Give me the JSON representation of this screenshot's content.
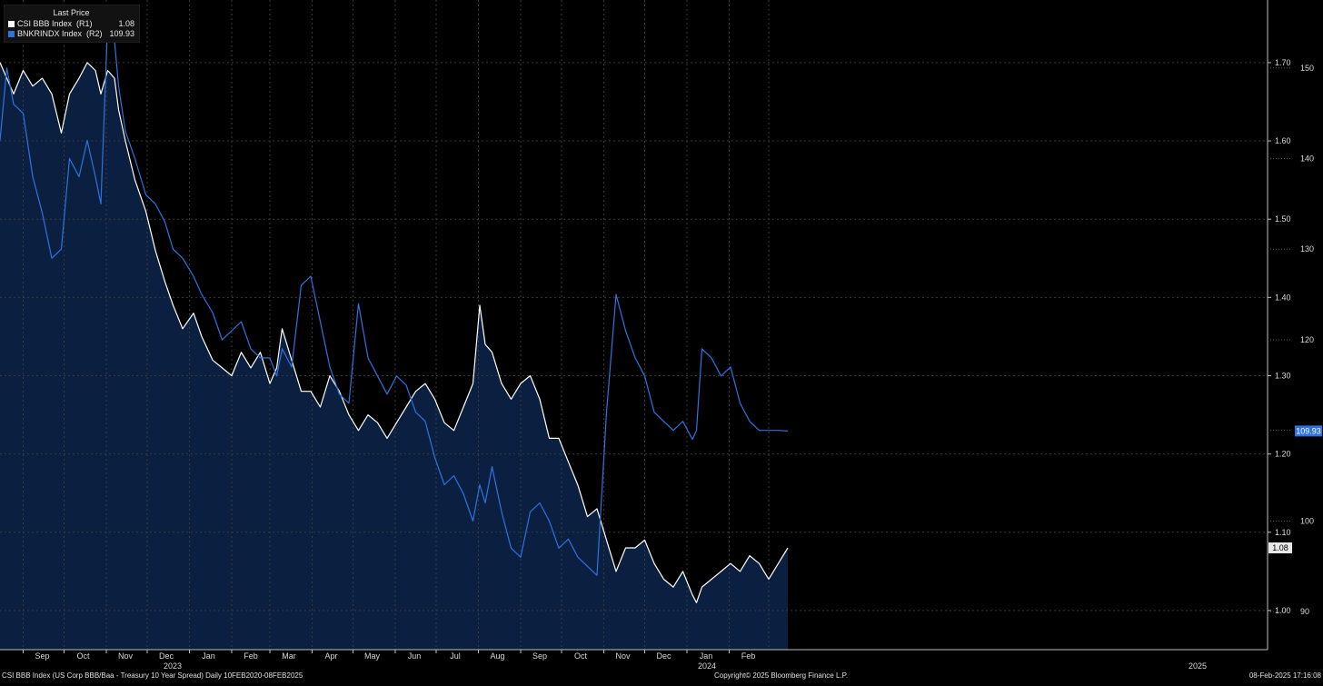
{
  "legend": {
    "title": "Last Price",
    "items": [
      {
        "name": "CSI BBB Index  (R1)",
        "value": "1.08",
        "color": "#ffffff"
      },
      {
        "name": "BNKRINDX Index  (R2)",
        "value": "109.93",
        "color": "#2f73e0"
      }
    ]
  },
  "footer": {
    "description": "CSI BBB Index (US Corp BBB/Baa - Treasury 10 Year Spread)  Daily 10FEB2020-08FEB2025",
    "copyright": "Copyright© 2025 Bloomberg Finance L.P.",
    "timestamp": "08-Feb-2025 17:16:08"
  },
  "colors": {
    "background": "#000000",
    "grid": "#3a3a3a",
    "csi_line": "#ffffff",
    "bnk_line": "#2f73e0",
    "area_fill": "#0b2040"
  },
  "chart_data": {
    "type": "line",
    "x_months": [
      "Sep",
      "Oct",
      "Nov",
      "Dec",
      "Jan",
      "Feb",
      "Mar",
      "Apr",
      "May",
      "Jun",
      "Jul",
      "Aug",
      "Sep",
      "Oct",
      "Nov",
      "Dec",
      "Jan",
      "Feb"
    ],
    "x_years": [
      "2023",
      "2024",
      "2025"
    ],
    "x_range": [
      "2022-08-15",
      "2025-03-02"
    ],
    "right_axis_1": {
      "series": "CSI BBB Index",
      "range": [
        0.95,
        1.78
      ],
      "ticks": [
        "1.00",
        "1.10",
        "1.20",
        "1.30",
        "1.40",
        "1.50",
        "1.60",
        "1.70"
      ]
    },
    "right_axis_2": {
      "series": "BNKRINDX Index",
      "range": [
        85.8,
        157.5
      ],
      "ticks": [
        "90",
        "100",
        "110",
        "120",
        "130",
        "140",
        "150"
      ]
    },
    "grid": true,
    "legend_position": "top-left",
    "last_value_labels": [
      "1.08",
      "109.93"
    ],
    "series": [
      {
        "name": "CSI BBB Index",
        "axis": "R1",
        "color": "#ffffff",
        "filled": true,
        "points": [
          [
            "2022-08-15",
            1.7
          ],
          [
            "2022-08-20",
            1.68
          ],
          [
            "2022-08-25",
            1.66
          ],
          [
            "2022-09-01",
            1.69
          ],
          [
            "2022-09-08",
            1.67
          ],
          [
            "2022-09-15",
            1.68
          ],
          [
            "2022-09-22",
            1.66
          ],
          [
            "2022-09-29",
            1.61
          ],
          [
            "2022-10-05",
            1.66
          ],
          [
            "2022-10-12",
            1.68
          ],
          [
            "2022-10-18",
            1.7
          ],
          [
            "2022-10-24",
            1.69
          ],
          [
            "2022-10-28",
            1.66
          ],
          [
            "2022-11-02",
            1.69
          ],
          [
            "2022-11-07",
            1.68
          ],
          [
            "2022-11-10",
            1.64
          ],
          [
            "2022-11-15",
            1.6
          ],
          [
            "2022-11-22",
            1.55
          ],
          [
            "2022-11-30",
            1.51
          ],
          [
            "2022-12-07",
            1.46
          ],
          [
            "2022-12-14",
            1.42
          ],
          [
            "2022-12-20",
            1.39
          ],
          [
            "2022-12-27",
            1.36
          ],
          [
            "2023-01-04",
            1.38
          ],
          [
            "2023-01-10",
            1.35
          ],
          [
            "2023-01-18",
            1.32
          ],
          [
            "2023-01-25",
            1.31
          ],
          [
            "2023-02-01",
            1.3
          ],
          [
            "2023-02-08",
            1.33
          ],
          [
            "2023-02-15",
            1.31
          ],
          [
            "2023-02-22",
            1.33
          ],
          [
            "2023-03-01",
            1.29
          ],
          [
            "2023-03-06",
            1.31
          ],
          [
            "2023-03-10",
            1.36
          ],
          [
            "2023-03-17",
            1.32
          ],
          [
            "2023-03-24",
            1.28
          ],
          [
            "2023-03-31",
            1.28
          ],
          [
            "2023-04-07",
            1.26
          ],
          [
            "2023-04-14",
            1.3
          ],
          [
            "2023-04-21",
            1.28
          ],
          [
            "2023-04-28",
            1.25
          ],
          [
            "2023-05-05",
            1.23
          ],
          [
            "2023-05-12",
            1.25
          ],
          [
            "2023-05-19",
            1.24
          ],
          [
            "2023-05-26",
            1.22
          ],
          [
            "2023-06-02",
            1.24
          ],
          [
            "2023-06-09",
            1.26
          ],
          [
            "2023-06-16",
            1.28
          ],
          [
            "2023-06-23",
            1.29
          ],
          [
            "2023-06-30",
            1.27
          ],
          [
            "2023-07-07",
            1.24
          ],
          [
            "2023-07-14",
            1.23
          ],
          [
            "2023-07-21",
            1.26
          ],
          [
            "2023-07-28",
            1.29
          ],
          [
            "2023-08-02",
            1.39
          ],
          [
            "2023-08-06",
            1.34
          ],
          [
            "2023-08-11",
            1.33
          ],
          [
            "2023-08-18",
            1.29
          ],
          [
            "2023-08-25",
            1.27
          ],
          [
            "2023-09-01",
            1.29
          ],
          [
            "2023-09-08",
            1.3
          ],
          [
            "2023-09-15",
            1.27
          ],
          [
            "2023-09-22",
            1.22
          ],
          [
            "2023-09-29",
            1.22
          ],
          [
            "2023-10-06",
            1.19
          ],
          [
            "2023-10-13",
            1.16
          ],
          [
            "2023-10-20",
            1.12
          ],
          [
            "2023-10-27",
            1.13
          ],
          [
            "2023-11-03",
            1.09
          ],
          [
            "2023-11-10",
            1.05
          ],
          [
            "2023-11-17",
            1.08
          ],
          [
            "2023-11-24",
            1.08
          ],
          [
            "2023-12-01",
            1.09
          ],
          [
            "2023-12-08",
            1.06
          ],
          [
            "2023-12-15",
            1.04
          ],
          [
            "2023-12-22",
            1.03
          ],
          [
            "2023-12-29",
            1.05
          ],
          [
            "2024-01-05",
            1.02
          ],
          [
            "2024-01-08",
            1.01
          ],
          [
            "2024-01-12",
            1.03
          ],
          [
            "2024-01-19",
            1.04
          ],
          [
            "2024-01-26",
            1.05
          ],
          [
            "2024-02-02",
            1.06
          ],
          [
            "2024-02-09",
            1.05
          ],
          [
            "2024-02-16",
            1.07
          ],
          [
            "2024-02-23",
            1.06
          ],
          [
            "2024-03-01",
            1.04
          ],
          [
            "2024-03-08",
            1.06
          ],
          [
            "2024-03-15",
            1.08
          ]
        ]
      },
      {
        "name": "BNKRINDX Index",
        "axis": "R2",
        "color": "#2f73e0",
        "filled": false,
        "points": [
          [
            "2022-08-15",
            142
          ],
          [
            "2022-08-20",
            150
          ],
          [
            "2022-08-25",
            146
          ],
          [
            "2022-09-01",
            145
          ],
          [
            "2022-09-08",
            138
          ],
          [
            "2022-09-15",
            134
          ],
          [
            "2022-09-22",
            129
          ],
          [
            "2022-09-29",
            130
          ],
          [
            "2022-10-05",
            140
          ],
          [
            "2022-10-12",
            138
          ],
          [
            "2022-10-18",
            142
          ],
          [
            "2022-10-24",
            138
          ],
          [
            "2022-10-28",
            135
          ],
          [
            "2022-11-02",
            155
          ],
          [
            "2022-11-07",
            153
          ],
          [
            "2022-11-10",
            148
          ],
          [
            "2022-11-15",
            143
          ],
          [
            "2022-11-22",
            140
          ],
          [
            "2022-11-30",
            136
          ],
          [
            "2022-12-07",
            135
          ],
          [
            "2022-12-14",
            133
          ],
          [
            "2022-12-20",
            130
          ],
          [
            "2022-12-27",
            129
          ],
          [
            "2023-01-04",
            127
          ],
          [
            "2023-01-10",
            125
          ],
          [
            "2023-01-18",
            123
          ],
          [
            "2023-01-25",
            120
          ],
          [
            "2023-02-01",
            121
          ],
          [
            "2023-02-08",
            122
          ],
          [
            "2023-02-15",
            119
          ],
          [
            "2023-02-22",
            118
          ],
          [
            "2023-03-01",
            118
          ],
          [
            "2023-03-06",
            116
          ],
          [
            "2023-03-10",
            119
          ],
          [
            "2023-03-17",
            117
          ],
          [
            "2023-03-24",
            126
          ],
          [
            "2023-03-31",
            127
          ],
          [
            "2023-04-07",
            122
          ],
          [
            "2023-04-14",
            117
          ],
          [
            "2023-04-21",
            114
          ],
          [
            "2023-04-28",
            113
          ],
          [
            "2023-05-05",
            124
          ],
          [
            "2023-05-12",
            118
          ],
          [
            "2023-05-19",
            116
          ],
          [
            "2023-05-26",
            114
          ],
          [
            "2023-06-02",
            116
          ],
          [
            "2023-06-09",
            115
          ],
          [
            "2023-06-16",
            112
          ],
          [
            "2023-06-23",
            111
          ],
          [
            "2023-06-30",
            107
          ],
          [
            "2023-07-07",
            104
          ],
          [
            "2023-07-14",
            105
          ],
          [
            "2023-07-21",
            103
          ],
          [
            "2023-07-28",
            100
          ],
          [
            "2023-08-02",
            104
          ],
          [
            "2023-08-06",
            102
          ],
          [
            "2023-08-11",
            106
          ],
          [
            "2023-08-18",
            101
          ],
          [
            "2023-08-25",
            97
          ],
          [
            "2023-09-01",
            96
          ],
          [
            "2023-09-08",
            101
          ],
          [
            "2023-09-15",
            102
          ],
          [
            "2023-09-22",
            100
          ],
          [
            "2023-09-29",
            97
          ],
          [
            "2023-10-06",
            98
          ],
          [
            "2023-10-13",
            96
          ],
          [
            "2023-10-20",
            95
          ],
          [
            "2023-10-27",
            94
          ],
          [
            "2023-11-03",
            112
          ],
          [
            "2023-11-10",
            125
          ],
          [
            "2023-11-17",
            121
          ],
          [
            "2023-11-24",
            118
          ],
          [
            "2023-12-01",
            116
          ],
          [
            "2023-12-08",
            112
          ],
          [
            "2023-12-15",
            111
          ],
          [
            "2023-12-22",
            110
          ],
          [
            "2023-12-29",
            111
          ],
          [
            "2024-01-05",
            109
          ],
          [
            "2024-01-08",
            110
          ],
          [
            "2024-01-12",
            119
          ],
          [
            "2024-01-19",
            118
          ],
          [
            "2024-01-26",
            116
          ],
          [
            "2024-02-02",
            117
          ],
          [
            "2024-02-09",
            113
          ],
          [
            "2024-02-16",
            111
          ],
          [
            "2024-02-23",
            110
          ],
          [
            "2024-03-01",
            110
          ],
          [
            "2024-03-08",
            110
          ],
          [
            "2024-03-15",
            109.93
          ]
        ]
      }
    ]
  }
}
